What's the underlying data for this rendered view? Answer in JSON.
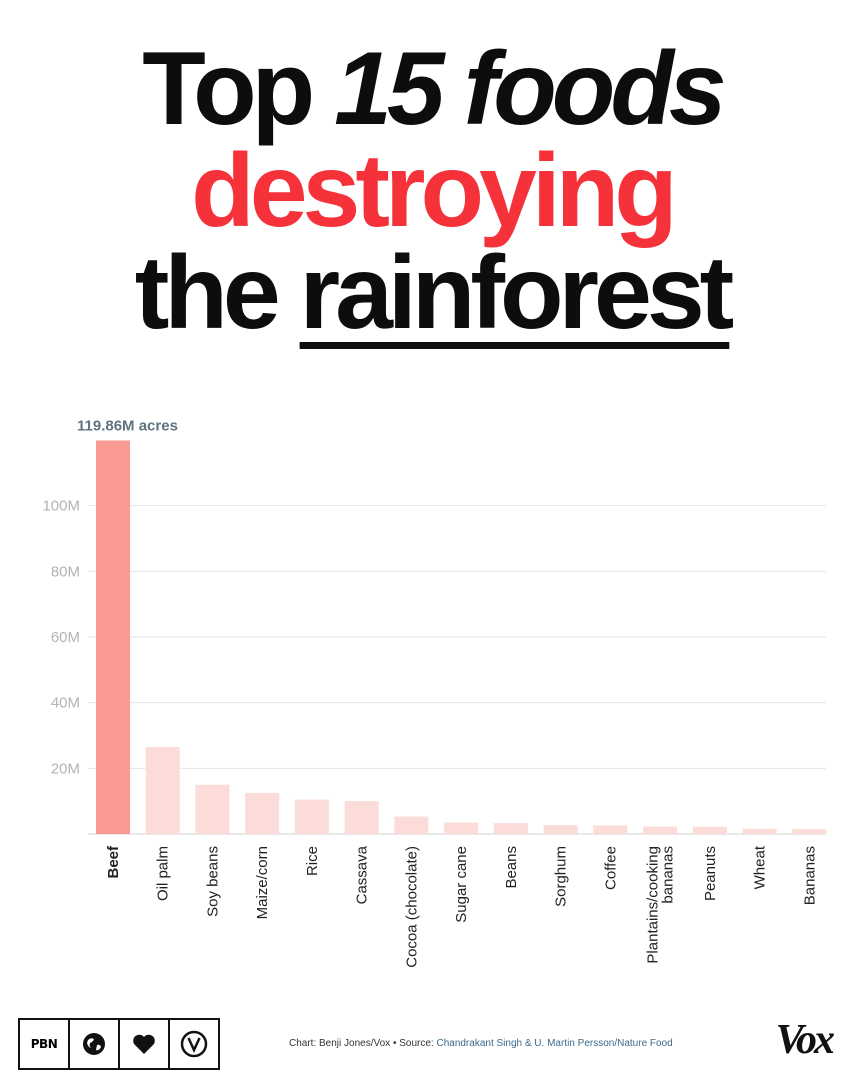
{
  "headline": {
    "line1_a": "Top ",
    "line1_b": "15 foods",
    "line2": "destroying",
    "line3_a": "the ",
    "line3_b": "rainforest"
  },
  "colors": {
    "highlight_bar": "#f99a93",
    "bar": "#fcdcd8",
    "headline_red": "#f5323a",
    "grid": "#e6e6e6",
    "tick_text": "#b3b3b3",
    "annotation": "#5f7480"
  },
  "chart_data": {
    "type": "bar",
    "categories": [
      "Beef",
      "Oil palm",
      "Soy beans",
      "Maize/corn",
      "Rice",
      "Cassava",
      "Cocoa (chocolate)",
      "Sugar cane",
      "Beans",
      "Sorghum",
      "Coffee",
      "Plantains/cooking bananas",
      "Peanuts",
      "Wheat",
      "Bananas"
    ],
    "values": [
      119.86,
      26.5,
      15,
      12.5,
      10.5,
      10,
      5.3,
      3.5,
      3.3,
      2.7,
      2.6,
      2.3,
      2.2,
      1.6,
      1.5
    ],
    "unit": "M acres",
    "highlight": "Beef",
    "annotation": "119.86M acres",
    "yticks": [
      20,
      40,
      60,
      80,
      100
    ],
    "ytick_labels": [
      "20M",
      "40M",
      "60M",
      "80M",
      "100M"
    ],
    "ylim": [
      0,
      120
    ],
    "grid": true,
    "title": "",
    "xlabel": "",
    "ylabel": ""
  },
  "footer": {
    "badges": [
      {
        "icon": "pbn-logo-icon",
        "text": "PBN"
      },
      {
        "icon": "globe-icon",
        "text": ""
      },
      {
        "icon": "heart-icon",
        "text": ""
      },
      {
        "icon": "vegan-v-icon",
        "text": ""
      }
    ],
    "credit_prefix": "Chart: Benji Jones/Vox • Source: ",
    "credit_source": "Chandrakant Singh & U. Martin Persson/Nature Food",
    "brand": "Vox"
  }
}
